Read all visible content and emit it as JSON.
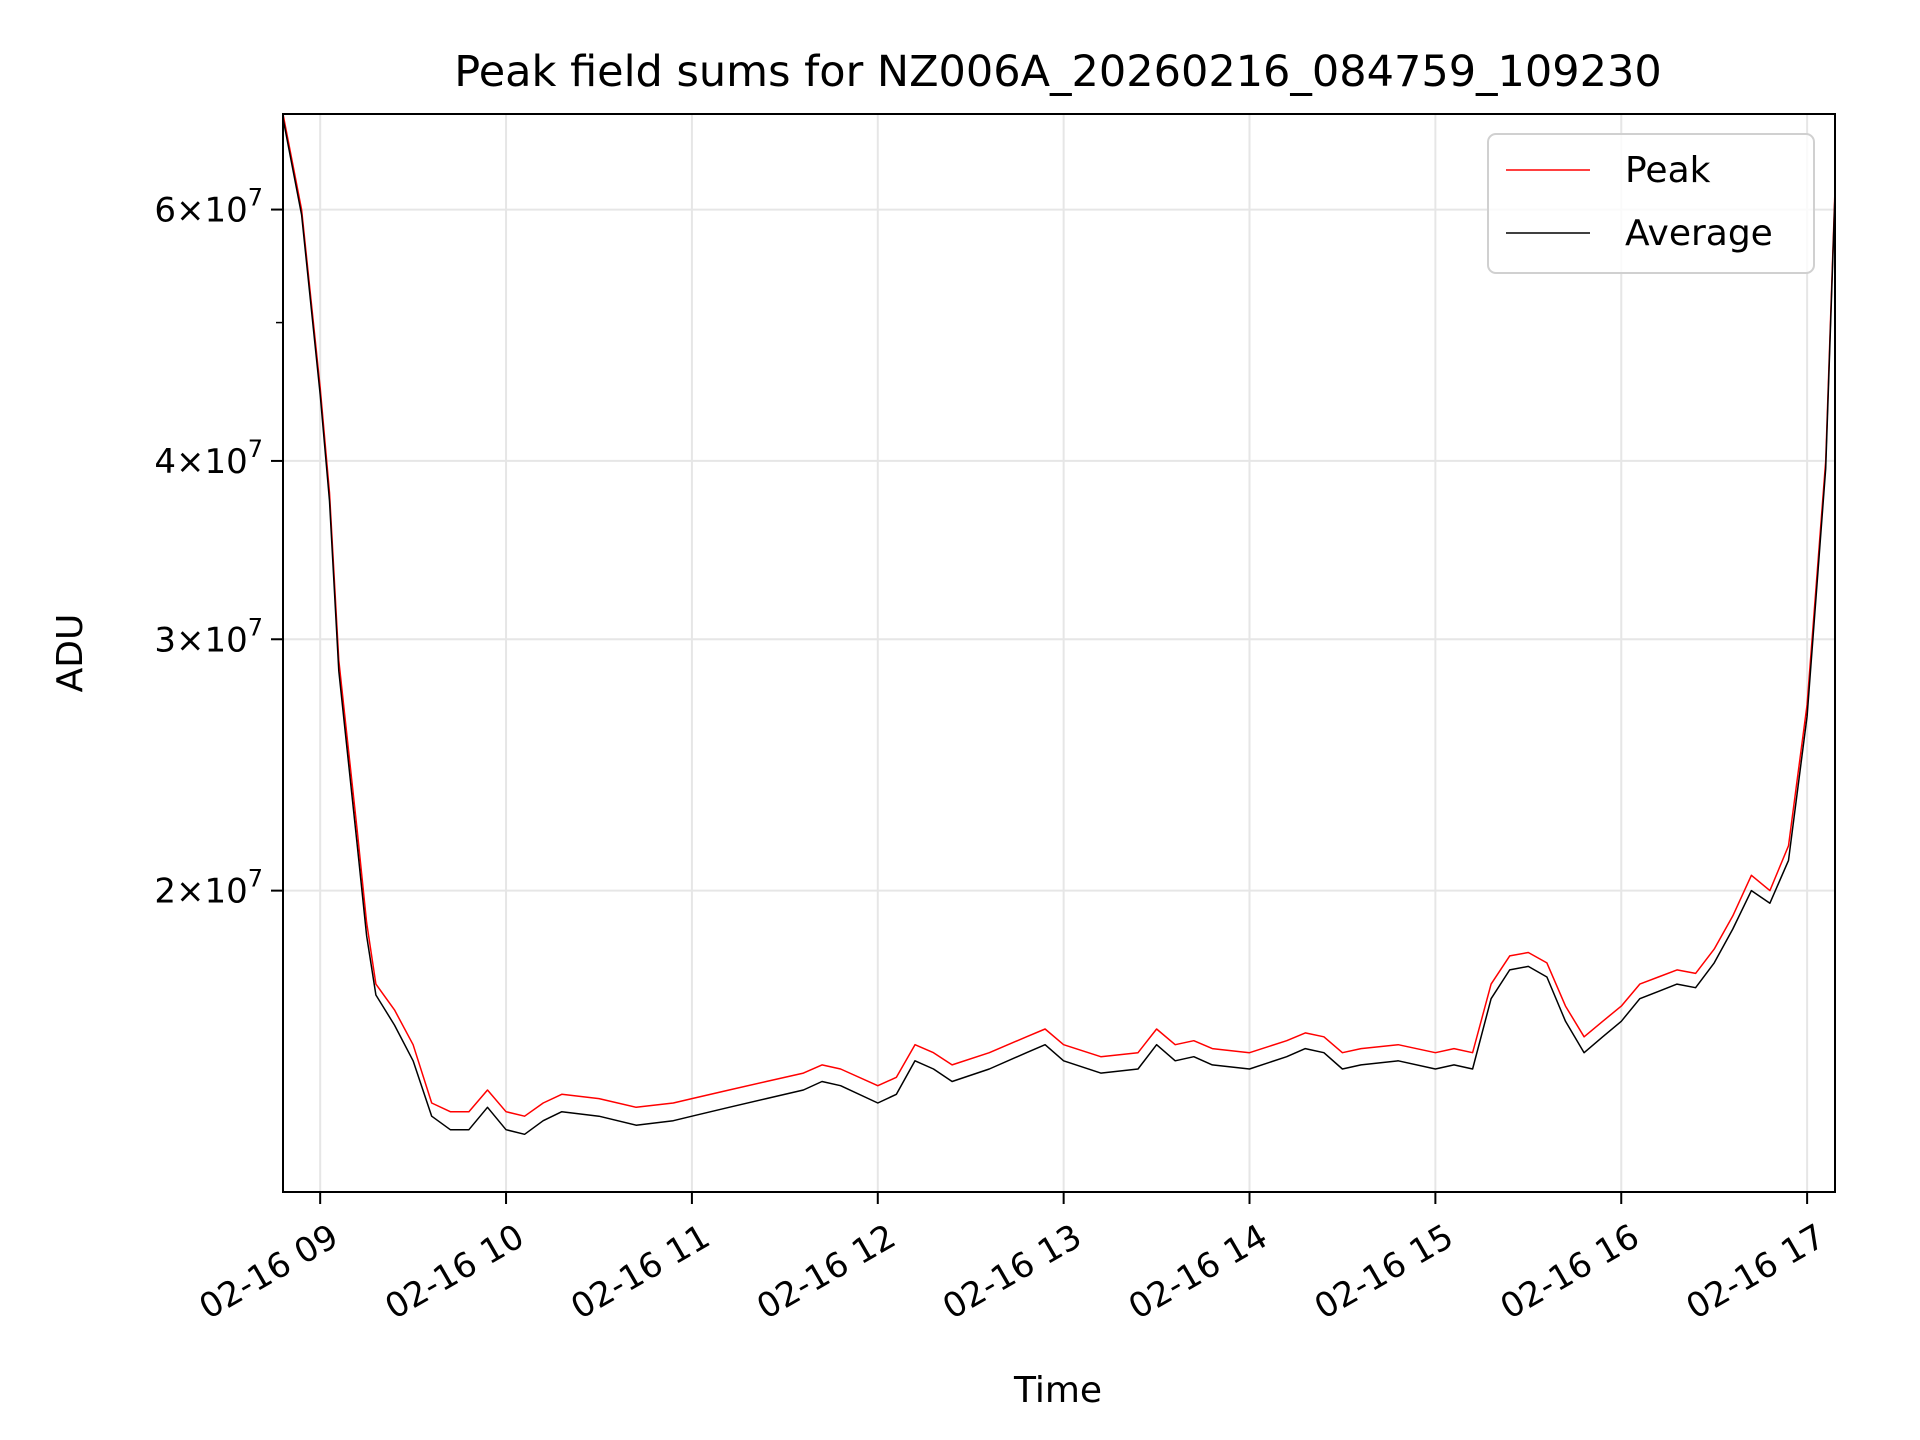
{
  "chart_data": {
    "type": "line",
    "title": "Peak field sums for NZ006A_20260216_084759_109230",
    "xlabel": "Time",
    "ylabel": "ADU",
    "yscale": "log",
    "ylim": [
      12300000,
      70000000
    ],
    "xlim_hours": [
      8.8,
      17.15
    ],
    "grid": true,
    "legend_position": "top-right",
    "x_ticks": [
      {
        "hour": 9,
        "label": "02-16 09"
      },
      {
        "hour": 10,
        "label": "02-16 10"
      },
      {
        "hour": 11,
        "label": "02-16 11"
      },
      {
        "hour": 12,
        "label": "02-16 12"
      },
      {
        "hour": 13,
        "label": "02-16 13"
      },
      {
        "hour": 14,
        "label": "02-16 14"
      },
      {
        "hour": 15,
        "label": "02-16 15"
      },
      {
        "hour": 16,
        "label": "02-16 16"
      },
      {
        "hour": 17,
        "label": "02-16 17"
      }
    ],
    "y_ticks": [
      {
        "value": 20000000,
        "mantissa": "2",
        "exponent": "7"
      },
      {
        "value": 30000000,
        "mantissa": "3",
        "exponent": "7"
      },
      {
        "value": 40000000,
        "mantissa": "4",
        "exponent": "7"
      },
      {
        "value": 60000000,
        "mantissa": "6",
        "exponent": "7"
      }
    ],
    "y_minor_ticks": [
      50000000
    ],
    "series": [
      {
        "name": "Peak",
        "color": "#ff0000",
        "x_hours": [
          8.8,
          8.9,
          9.0,
          9.05,
          9.1,
          9.2,
          9.25,
          9.3,
          9.4,
          9.5,
          9.6,
          9.7,
          9.8,
          9.9,
          10.0,
          10.1,
          10.2,
          10.3,
          10.5,
          10.7,
          10.9,
          11.0,
          11.2,
          11.4,
          11.6,
          11.7,
          11.8,
          12.0,
          12.1,
          12.2,
          12.3,
          12.4,
          12.6,
          12.8,
          12.9,
          13.0,
          13.2,
          13.4,
          13.5,
          13.6,
          13.7,
          13.8,
          14.0,
          14.2,
          14.3,
          14.4,
          14.5,
          14.6,
          14.8,
          15.0,
          15.1,
          15.2,
          15.3,
          15.4,
          15.5,
          15.6,
          15.7,
          15.8,
          15.9,
          16.0,
          16.1,
          16.2,
          16.3,
          16.4,
          16.5,
          16.6,
          16.7,
          16.8,
          16.9,
          17.0,
          17.1,
          17.15
        ],
        "y_values": [
          70000000,
          60000000,
          45000000,
          38000000,
          29000000,
          22000000,
          19000000,
          17200000,
          16500000,
          15600000,
          14200000,
          14000000,
          14000000,
          14500000,
          14000000,
          13900000,
          14200000,
          14400000,
          14300000,
          14100000,
          14200000,
          14300000,
          14500000,
          14700000,
          14900000,
          15100000,
          15000000,
          14600000,
          14800000,
          15600000,
          15400000,
          15100000,
          15400000,
          15800000,
          16000000,
          15600000,
          15300000,
          15400000,
          16000000,
          15600000,
          15700000,
          15500000,
          15400000,
          15700000,
          15900000,
          15800000,
          15400000,
          15500000,
          15600000,
          15400000,
          15500000,
          15400000,
          17200000,
          18000000,
          18100000,
          17800000,
          16600000,
          15800000,
          16200000,
          16600000,
          17200000,
          17400000,
          17600000,
          17500000,
          18200000,
          19200000,
          20500000,
          20000000,
          21500000,
          27000000,
          40000000,
          62000000
        ]
      },
      {
        "name": "Average",
        "color": "#000000",
        "x_hours": [
          8.8,
          8.9,
          9.0,
          9.05,
          9.1,
          9.2,
          9.25,
          9.3,
          9.4,
          9.5,
          9.6,
          9.7,
          9.8,
          9.9,
          10.0,
          10.1,
          10.2,
          10.3,
          10.5,
          10.7,
          10.9,
          11.0,
          11.2,
          11.4,
          11.6,
          11.7,
          11.8,
          12.0,
          12.1,
          12.2,
          12.3,
          12.4,
          12.6,
          12.8,
          12.9,
          13.0,
          13.2,
          13.4,
          13.5,
          13.6,
          13.7,
          13.8,
          14.0,
          14.2,
          14.3,
          14.4,
          14.5,
          14.6,
          14.8,
          15.0,
          15.1,
          15.2,
          15.3,
          15.4,
          15.5,
          15.6,
          15.7,
          15.8,
          15.9,
          16.0,
          16.1,
          16.2,
          16.3,
          16.4,
          16.5,
          16.6,
          16.7,
          16.8,
          16.9,
          17.0,
          17.1,
          17.15
        ],
        "y_values": [
          69500000,
          59500000,
          44500000,
          37500000,
          28500000,
          21500000,
          18600000,
          16900000,
          16100000,
          15200000,
          13900000,
          13600000,
          13600000,
          14100000,
          13600000,
          13500000,
          13800000,
          14000000,
          13900000,
          13700000,
          13800000,
          13900000,
          14100000,
          14300000,
          14500000,
          14700000,
          14600000,
          14200000,
          14400000,
          15200000,
          15000000,
          14700000,
          15000000,
          15400000,
          15600000,
          15200000,
          14900000,
          15000000,
          15600000,
          15200000,
          15300000,
          15100000,
          15000000,
          15300000,
          15500000,
          15400000,
          15000000,
          15100000,
          15200000,
          15000000,
          15100000,
          15000000,
          16800000,
          17600000,
          17700000,
          17400000,
          16200000,
          15400000,
          15800000,
          16200000,
          16800000,
          17000000,
          17200000,
          17100000,
          17800000,
          18800000,
          20000000,
          19600000,
          21000000,
          26500000,
          39500000,
          61500000
        ]
      }
    ]
  }
}
